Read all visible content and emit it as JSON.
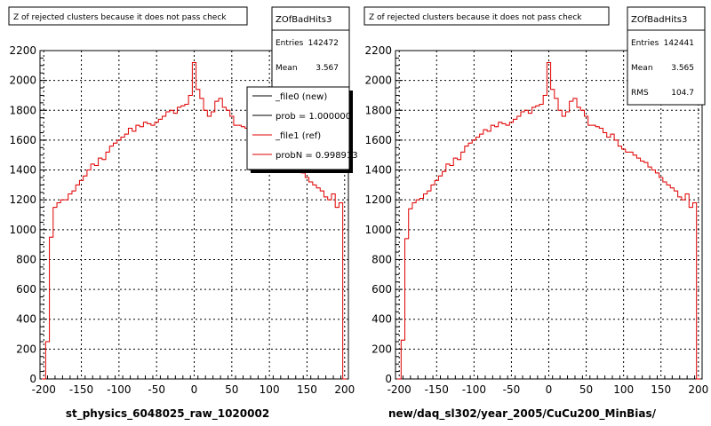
{
  "panels": [
    {
      "title": "Z of rejected clusters  because it does not pass check",
      "xlabel": "st_physics_6048025_raw_1020002",
      "stats": {
        "name": "ZOfBadHits3",
        "rows": [
          {
            "label": "Entries",
            "value": "142472"
          },
          {
            "label": "Mean",
            "value": "3.567"
          }
        ]
      },
      "legend": [
        {
          "label": "_file0 (new)",
          "color": "#000000"
        },
        {
          "label": "prob = 1.000000",
          "color": "#000000"
        },
        {
          "label": "_file1 (ref)",
          "color": "#e00000"
        },
        {
          "label": "probN = 0.998913",
          "color": "#e00000"
        }
      ]
    },
    {
      "title": "Z of rejected clusters  because it does not pass check",
      "xlabel": "new/daq_sl302/year_2005/CuCu200_MinBias/",
      "stats": {
        "name": "ZOfBadHits3",
        "rows": [
          {
            "label": "Entries",
            "value": "142441"
          },
          {
            "label": "Mean",
            "value": "3.565"
          },
          {
            "label": "RMS",
            "value": "104.7"
          }
        ]
      },
      "legend": []
    }
  ],
  "colors": {
    "histogram": "#e00000",
    "axis": "#000000",
    "grid": "#000000"
  },
  "chart_data": [
    {
      "type": "bar",
      "title": "Z of rejected clusters  because it does not pass check",
      "xlabel": "st_physics_6048025_raw_1020002",
      "ylabel": "",
      "xlim": [
        -205,
        205
      ],
      "ylim": [
        0,
        2200
      ],
      "xticks": [
        -200,
        -150,
        -100,
        -50,
        0,
        50,
        100,
        150,
        200
      ],
      "yticks": [
        0,
        200,
        400,
        600,
        800,
        1000,
        1200,
        1400,
        1600,
        1800,
        2000,
        2200
      ],
      "grid": true,
      "legend_position": "top-right",
      "series": [
        {
          "name": "_file1 (ref)",
          "x": [
            -200,
            -195,
            -190,
            -185,
            -180,
            -175,
            -170,
            -165,
            -160,
            -155,
            -150,
            -145,
            -140,
            -135,
            -130,
            -125,
            -120,
            -115,
            -110,
            -105,
            -100,
            -95,
            -90,
            -85,
            -80,
            -75,
            -70,
            -65,
            -60,
            -55,
            -50,
            -45,
            -40,
            -35,
            -30,
            -25,
            -20,
            -15,
            -10,
            -5,
            0,
            5,
            10,
            15,
            20,
            25,
            30,
            35,
            40,
            45,
            50,
            55,
            60,
            65,
            70,
            75,
            80,
            85,
            90,
            95,
            100,
            105,
            110,
            115,
            120,
            125,
            130,
            135,
            140,
            145,
            150,
            155,
            160,
            165,
            170,
            175,
            180,
            185,
            190,
            195,
            200
          ],
          "values": [
            0,
            250,
            950,
            1150,
            1180,
            1200,
            1200,
            1240,
            1260,
            1300,
            1330,
            1360,
            1400,
            1440,
            1430,
            1480,
            1470,
            1520,
            1560,
            1580,
            1600,
            1620,
            1640,
            1680,
            1660,
            1700,
            1690,
            1720,
            1710,
            1700,
            1720,
            1740,
            1760,
            1790,
            1800,
            1780,
            1820,
            1830,
            1840,
            1900,
            2120,
            1940,
            1880,
            1800,
            1760,
            1790,
            1860,
            1880,
            1820,
            1800,
            1760,
            1700,
            1700,
            1690,
            1680,
            1650,
            1620,
            1640,
            1600,
            1560,
            1540,
            1520,
            1520,
            1500,
            1480,
            1460,
            1450,
            1420,
            1400,
            1380,
            1350,
            1320,
            1300,
            1280,
            1260,
            1220,
            1200,
            1240,
            1150,
            1180,
            0
          ]
        }
      ]
    },
    {
      "type": "bar",
      "title": "Z of rejected clusters  because it does not pass check",
      "xlabel": "new/daq_sl302/year_2005/CuCu200_MinBias/",
      "ylabel": "",
      "xlim": [
        -205,
        205
      ],
      "ylim": [
        0,
        2200
      ],
      "xticks": [
        -200,
        -150,
        -100,
        -50,
        0,
        50,
        100,
        150,
        200
      ],
      "yticks": [
        0,
        200,
        400,
        600,
        800,
        1000,
        1200,
        1400,
        1600,
        1800,
        2000,
        2200
      ],
      "grid": true,
      "series": [
        {
          "x": [
            -200,
            -195,
            -190,
            -185,
            -180,
            -175,
            -170,
            -165,
            -160,
            -155,
            -150,
            -145,
            -140,
            -135,
            -130,
            -125,
            -120,
            -115,
            -110,
            -105,
            -100,
            -95,
            -90,
            -85,
            -80,
            -75,
            -70,
            -65,
            -60,
            -55,
            -50,
            -45,
            -40,
            -35,
            -30,
            -25,
            -20,
            -15,
            -10,
            -5,
            0,
            5,
            10,
            15,
            20,
            25,
            30,
            35,
            40,
            45,
            50,
            55,
            60,
            65,
            70,
            75,
            80,
            85,
            90,
            95,
            100,
            105,
            110,
            115,
            120,
            125,
            130,
            135,
            140,
            145,
            150,
            155,
            160,
            165,
            170,
            175,
            180,
            185,
            190,
            195,
            200
          ],
          "values": [
            0,
            260,
            940,
            1140,
            1180,
            1200,
            1210,
            1240,
            1260,
            1300,
            1330,
            1360,
            1390,
            1440,
            1430,
            1480,
            1470,
            1520,
            1560,
            1580,
            1600,
            1620,
            1640,
            1670,
            1660,
            1700,
            1690,
            1720,
            1710,
            1700,
            1720,
            1740,
            1760,
            1790,
            1800,
            1780,
            1820,
            1830,
            1840,
            1900,
            2120,
            1940,
            1880,
            1800,
            1760,
            1790,
            1860,
            1880,
            1820,
            1800,
            1760,
            1700,
            1700,
            1690,
            1680,
            1650,
            1620,
            1640,
            1600,
            1560,
            1540,
            1520,
            1520,
            1500,
            1480,
            1460,
            1450,
            1420,
            1400,
            1380,
            1350,
            1320,
            1300,
            1280,
            1260,
            1220,
            1200,
            1240,
            1150,
            1180,
            0
          ]
        }
      ]
    }
  ]
}
